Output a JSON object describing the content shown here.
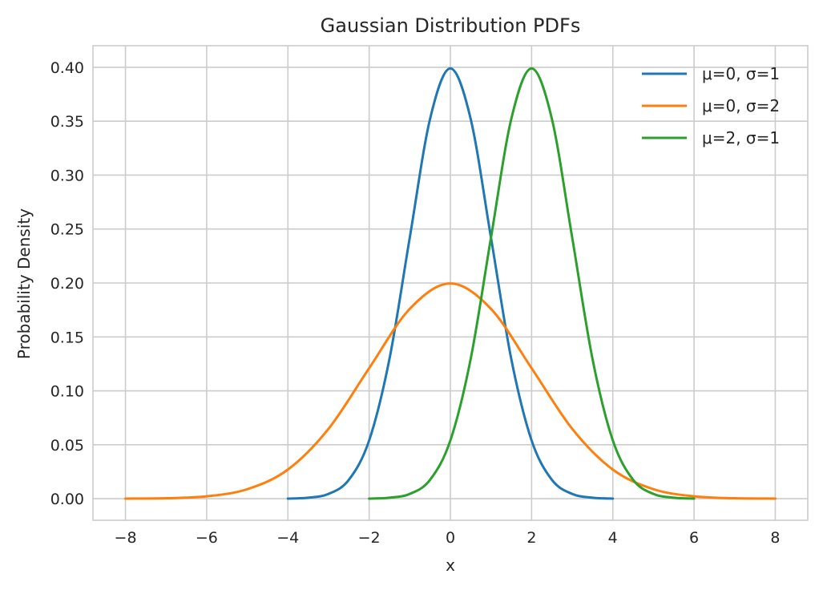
{
  "chart_data": {
    "type": "line",
    "title": "Gaussian Distribution PDFs",
    "xlabel": "x",
    "ylabel": "Probability Density",
    "xlim": [
      -8.8,
      8.8
    ],
    "ylim": [
      -0.02,
      0.42
    ],
    "grid": true,
    "legend_position": "top-right",
    "x_ticks": [
      -8,
      -6,
      -4,
      -2,
      0,
      2,
      4,
      6,
      8
    ],
    "x_tick_labels": [
      "−8",
      "−6",
      "−4",
      "−2",
      "0",
      "2",
      "4",
      "6",
      "8"
    ],
    "y_ticks": [
      0.0,
      0.05,
      0.1,
      0.15,
      0.2,
      0.25,
      0.3,
      0.35,
      0.4
    ],
    "y_tick_labels": [
      "0.00",
      "0.05",
      "0.10",
      "0.15",
      "0.20",
      "0.25",
      "0.30",
      "0.35",
      "0.40"
    ],
    "series": [
      {
        "name": "μ=0, σ=1",
        "color": "#1f77b4",
        "x": [
          -4,
          -3.5,
          -3,
          -2.5,
          -2,
          -1.5,
          -1,
          -0.5,
          0,
          0.5,
          1,
          1.5,
          2,
          2.5,
          3,
          3.5,
          4
        ],
        "y": [
          0.0001,
          0.0009,
          0.0044,
          0.0175,
          0.054,
          0.1295,
          0.242,
          0.3521,
          0.3989,
          0.3521,
          0.242,
          0.1295,
          0.054,
          0.0175,
          0.0044,
          0.0009,
          0.0001
        ]
      },
      {
        "name": "μ=0, σ=2",
        "color": "#ff7f0e",
        "x": [
          -8,
          -7,
          -6,
          -5,
          -4,
          -3,
          -2,
          -1,
          0,
          1,
          2,
          3,
          4,
          5,
          6,
          7,
          8
        ],
        "y": [
          0.0001,
          0.0004,
          0.0022,
          0.0088,
          0.027,
          0.0648,
          0.121,
          0.176,
          0.1995,
          0.176,
          0.121,
          0.0648,
          0.027,
          0.0088,
          0.0022,
          0.0004,
          0.0001
        ]
      },
      {
        "name": "μ=2, σ=1",
        "color": "#2ca02c",
        "x": [
          -2,
          -1.5,
          -1,
          -0.5,
          0,
          0.5,
          1,
          1.5,
          2,
          2.5,
          3,
          3.5,
          4,
          4.5,
          5,
          5.5,
          6
        ],
        "y": [
          0.0001,
          0.0009,
          0.0044,
          0.0175,
          0.054,
          0.1295,
          0.242,
          0.3521,
          0.3989,
          0.3521,
          0.242,
          0.1295,
          0.054,
          0.0175,
          0.0044,
          0.0009,
          0.0001
        ]
      }
    ]
  }
}
